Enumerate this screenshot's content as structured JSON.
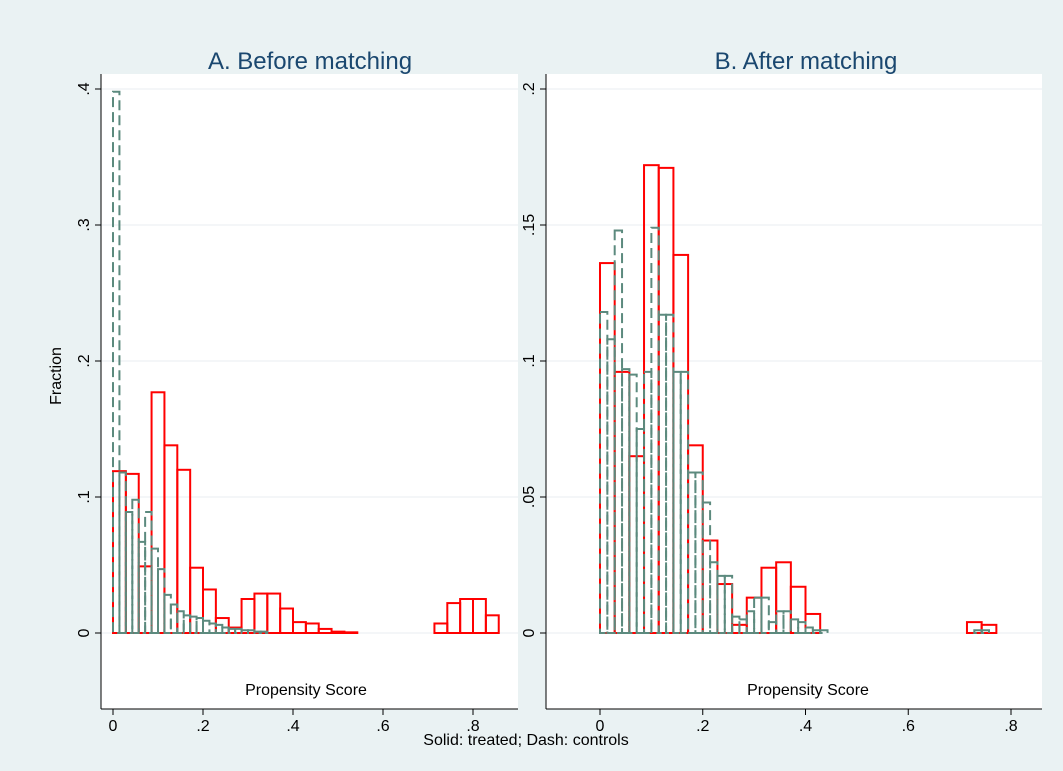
{
  "note": "Solid: treated; Dash: controls",
  "chart_data": [
    {
      "type": "bar",
      "title": "A. Before matching",
      "xlabel": "Propensity Score",
      "ylabel": "Fraction",
      "xlim": [
        -0.03,
        0.87
      ],
      "ylim": [
        0,
        0.4
      ],
      "xticks": [
        0,
        0.2,
        0.4,
        0.6,
        0.8
      ],
      "xtick_labels": [
        "0",
        ".2",
        ".4",
        ".6",
        ".8"
      ],
      "yticks": [
        0,
        0.1,
        0.2,
        0.3,
        0.4
      ],
      "ytick_labels": [
        "0",
        ".1",
        ".2",
        ".3",
        ".4"
      ],
      "grid": true,
      "series": [
        {
          "name": "treated",
          "style": "solid",
          "color": "#ff0000",
          "bin_width": 0.0286,
          "x": [
            0,
            0.0286,
            0.0571,
            0.0857,
            0.1143,
            0.1429,
            0.1714,
            0.2,
            0.2286,
            0.2571,
            0.2857,
            0.3143,
            0.3429,
            0.3714,
            0.4,
            0.4286,
            0.4571,
            0.4857,
            0.5143,
            0.7143,
            0.7429,
            0.7714,
            0.8,
            0.8286
          ],
          "values": [
            0.119,
            0.117,
            0.049,
            0.177,
            0.138,
            0.12,
            0.048,
            0.032,
            0.011,
            0.004,
            0.025,
            0.029,
            0.029,
            0.018,
            0.008,
            0.007,
            0.003,
            0.001,
            0.0005,
            0.007,
            0.022,
            0.025,
            0.025,
            0.013
          ]
        },
        {
          "name": "controls",
          "style": "dash",
          "color": "#5c8a7e",
          "bin_width": 0.0143,
          "x": [
            0,
            0.0143,
            0.0286,
            0.0429,
            0.0571,
            0.0714,
            0.0857,
            0.1,
            0.1143,
            0.1286,
            0.1429,
            0.1571,
            0.1714,
            0.1857,
            0.2,
            0.2143,
            0.2286,
            0.2429,
            0.2571,
            0.2714,
            0.2857,
            0.3,
            0.3143,
            0.3286
          ],
          "values": [
            0.398,
            0.118,
            0.089,
            0.098,
            0.067,
            0.089,
            0.062,
            0.047,
            0.028,
            0.021,
            0.016,
            0.013,
            0.012,
            0.011,
            0.009,
            0.007,
            0.006,
            0.004,
            0.003,
            0.003,
            0.002,
            0.002,
            0.001,
            0.001
          ]
        }
      ]
    },
    {
      "type": "bar",
      "title": "B. After matching",
      "xlabel": "Propensity Score",
      "ylabel": "",
      "xlim": [
        -0.03,
        0.82
      ],
      "ylim": [
        0,
        0.2
      ],
      "xticks": [
        0,
        0.2,
        0.4,
        0.6,
        0.8
      ],
      "xtick_labels": [
        "0",
        ".2",
        ".4",
        ".6",
        ".8"
      ],
      "yticks": [
        0,
        0.05,
        0.1,
        0.15,
        0.2
      ],
      "ytick_labels": [
        "0",
        ".05",
        ".1",
        ".15",
        ".2"
      ],
      "grid": true,
      "series": [
        {
          "name": "treated",
          "style": "solid",
          "color": "#ff0000",
          "bin_width": 0.0286,
          "x": [
            0,
            0.0286,
            0.0571,
            0.0857,
            0.1143,
            0.1429,
            0.1714,
            0.2,
            0.2286,
            0.2571,
            0.2857,
            0.3143,
            0.3429,
            0.3714,
            0.4,
            0.7143,
            0.7429
          ],
          "values": [
            0.136,
            0.096,
            0.065,
            0.172,
            0.171,
            0.139,
            0.069,
            0.034,
            0.018,
            0.003,
            0.013,
            0.024,
            0.026,
            0.017,
            0.007,
            0.004,
            0.003
          ]
        },
        {
          "name": "controls",
          "style": "dash",
          "color": "#5c8a7e",
          "bin_width": 0.0143,
          "x": [
            0,
            0.0143,
            0.0286,
            0.0429,
            0.0571,
            0.0714,
            0.0857,
            0.1,
            0.1143,
            0.1286,
            0.1429,
            0.1571,
            0.1714,
            0.1857,
            0.2,
            0.2143,
            0.2286,
            0.2429,
            0.2571,
            0.2714,
            0.2857,
            0.3,
            0.3143,
            0.3286,
            0.3429,
            0.3571,
            0.3714,
            0.3857,
            0.4,
            0.4143,
            0.4286,
            0.7286,
            0.7429
          ],
          "values": [
            0.118,
            0.108,
            0.148,
            0.097,
            0.095,
            0.075,
            0.096,
            0.149,
            0.117,
            0.117,
            0.096,
            0.096,
            0.059,
            0.059,
            0.048,
            0.026,
            0.021,
            0.021,
            0.006,
            0.005,
            0.008,
            0.013,
            0.013,
            0.004,
            0.008,
            0.008,
            0.005,
            0.004,
            0.002,
            0.001,
            0.001,
            0.001,
            0.001
          ]
        }
      ]
    }
  ]
}
